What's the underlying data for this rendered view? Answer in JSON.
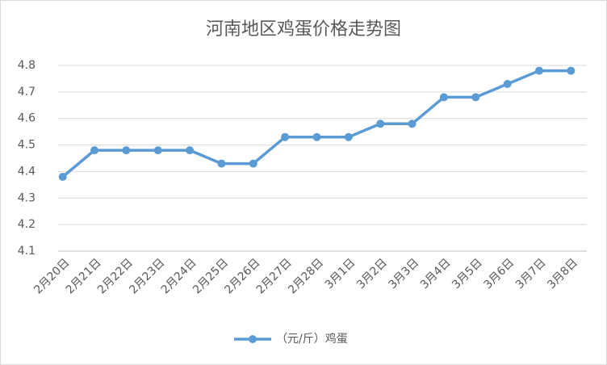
{
  "chart_data": {
    "type": "line",
    "title": "河南地区鸡蛋价格走势图",
    "categories": [
      "2月20日",
      "2月21日",
      "2月22日",
      "2月23日",
      "2月24日",
      "2月25日",
      "2月26日",
      "2月27日",
      "2月28日",
      "3月1日",
      "3月2日",
      "3月3日",
      "3月4日",
      "3月5日",
      "3月6日",
      "3月7日",
      "3月8日"
    ],
    "series": [
      {
        "name": "（元/斤）鸡蛋",
        "color": "#5b9bd5",
        "values": [
          4.38,
          4.48,
          4.48,
          4.48,
          4.48,
          4.43,
          4.43,
          4.53,
          4.53,
          4.53,
          4.58,
          4.58,
          4.68,
          4.68,
          4.73,
          4.78,
          4.78
        ]
      }
    ],
    "ylim": [
      4.1,
      4.8
    ],
    "yticks": [
      4.1,
      4.2,
      4.3,
      4.4,
      4.5,
      4.6,
      4.7,
      4.8
    ],
    "grid": true,
    "legend": "bottom"
  }
}
